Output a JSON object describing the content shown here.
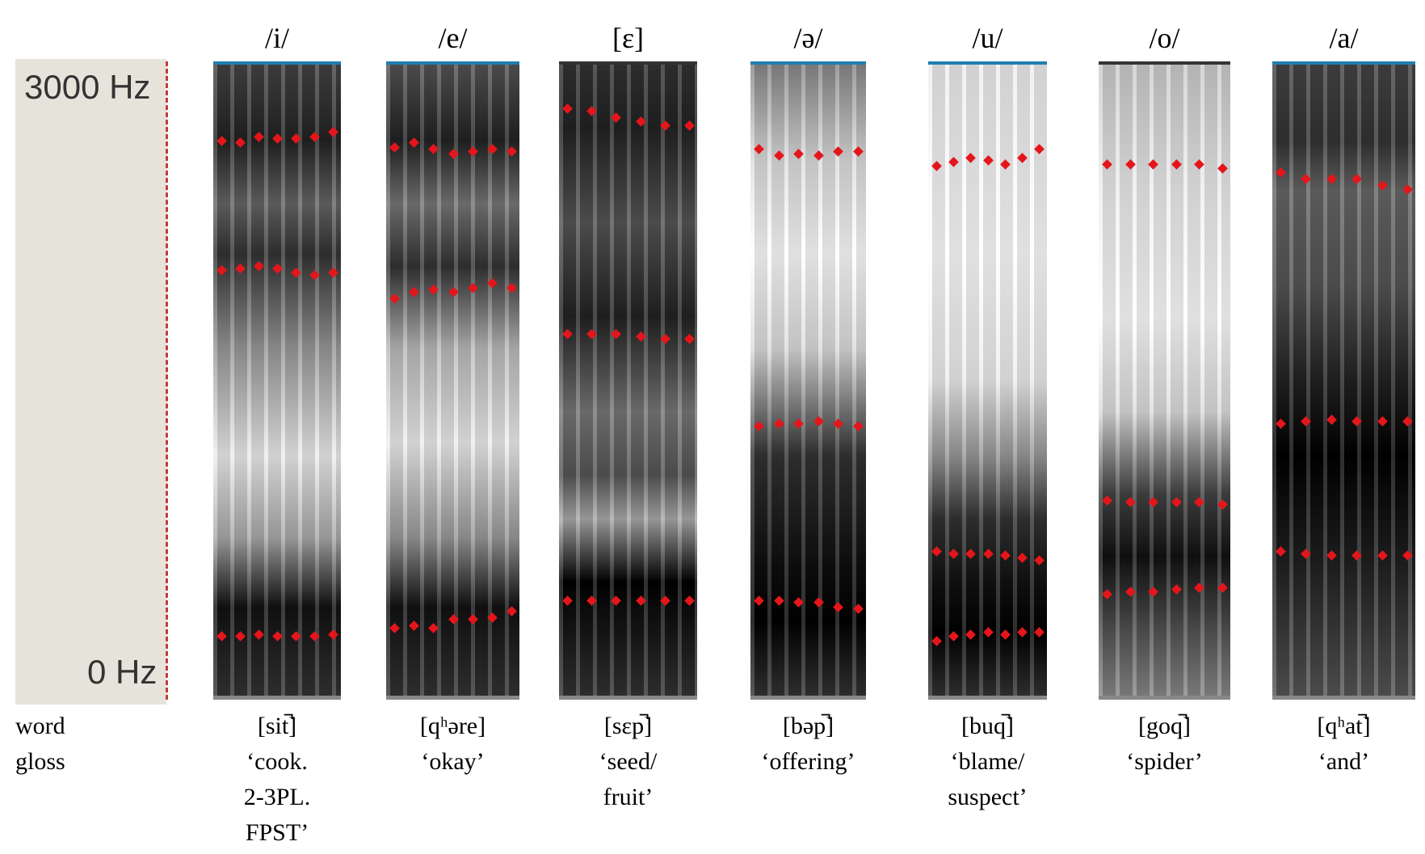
{
  "axis": {
    "top_label": "3000 Hz",
    "bottom_label": "0 Hz",
    "top_hz": 3000,
    "bottom_hz": 0
  },
  "row_labels": [
    "word",
    "gloss"
  ],
  "vowels": [
    {
      "label": "/i/",
      "word": "[sit̚]",
      "gloss": [
        "‘cook.",
        "2-3PL.",
        "FPST’"
      ],
      "formants": [
        [
          2640,
          2630,
          2660,
          2650,
          2650,
          2660,
          2680
        ],
        [
          2030,
          2040,
          2050,
          2040,
          2020,
          2010,
          2020
        ],
        [
          310,
          310,
          320,
          310,
          310,
          310,
          320
        ]
      ]
    },
    {
      "label": "/e/",
      "word": "[qʰəre]",
      "gloss": [
        "‘okay’"
      ],
      "formants": [
        [
          2610,
          2630,
          2600,
          2580,
          2590,
          2600,
          2590
        ],
        [
          1900,
          1930,
          1940,
          1930,
          1950,
          1970,
          1950
        ],
        [
          350,
          360,
          350,
          390,
          390,
          400,
          430
        ]
      ]
    },
    {
      "label": "[ɛ]",
      "word": "[sɛp̚]",
      "gloss": [
        "‘seed/",
        "fruit’"
      ],
      "formants": [
        [
          2790,
          2780,
          2750,
          2730,
          2710,
          2710
        ],
        [
          1730,
          1730,
          1730,
          1720,
          1710,
          1710
        ],
        [
          480,
          480,
          480,
          480,
          480,
          480
        ]
      ]
    },
    {
      "label": "/ə/",
      "word": "[bəp̚]",
      "gloss": [
        "‘offering’"
      ],
      "formants": [
        [
          2600,
          2570,
          2580,
          2570,
          2590,
          2590
        ],
        [
          1300,
          1310,
          1310,
          1320,
          1310,
          1300
        ],
        [
          480,
          480,
          470,
          470,
          450,
          440
        ]
      ]
    },
    {
      "label": "/u/",
      "word": "[buq̚]",
      "gloss": [
        "‘blame/",
        "suspect’"
      ],
      "formants": [
        [
          2520,
          2540,
          2560,
          2550,
          2530,
          2560,
          2600
        ],
        [
          710,
          700,
          700,
          700,
          690,
          680,
          670
        ],
        [
          290,
          310,
          320,
          330,
          320,
          330,
          330
        ]
      ]
    },
    {
      "label": "/o/",
      "word": "[goq̚]",
      "gloss": [
        "‘spider’"
      ],
      "formants": [
        [
          2530,
          2530,
          2530,
          2530,
          2530,
          2510
        ],
        [
          950,
          940,
          940,
          940,
          940,
          930
        ],
        [
          510,
          520,
          520,
          530,
          540,
          540
        ]
      ]
    },
    {
      "label": "/a/",
      "word": "[qʰat̚]",
      "gloss": [
        "‘and’"
      ],
      "formants": [
        [
          2490,
          2460,
          2460,
          2460,
          2430,
          2410
        ],
        [
          1310,
          1320,
          1330,
          1320,
          1320,
          1320
        ],
        [
          710,
          700,
          690,
          690,
          690,
          690
        ]
      ]
    }
  ]
}
